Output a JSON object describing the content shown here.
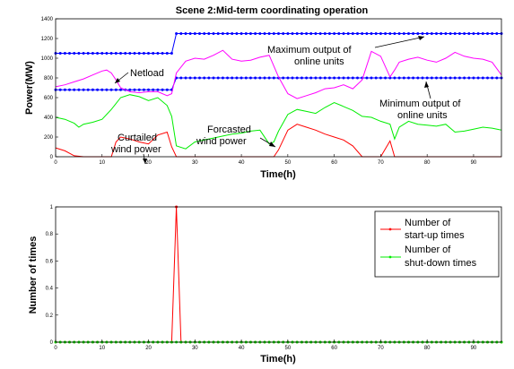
{
  "chart_data": [
    {
      "type": "line",
      "title": "Scene 2:Mid-term coordinating operation",
      "xlabel": "Time(h)",
      "ylabel": "Power(MW)",
      "xlim": [
        0,
        96
      ],
      "ylim": [
        0,
        1400
      ],
      "xticks": [
        0,
        10,
        20,
        30,
        40,
        50,
        60,
        70,
        80,
        90
      ],
      "yticks": [
        0,
        200,
        400,
        600,
        800,
        1000,
        1200,
        1400
      ],
      "grid": false,
      "series": [
        {
          "key": "max_output",
          "color": "#0000ff",
          "marker": "dot",
          "points": [
            [
              0,
              1050
            ],
            [
              25,
              1050
            ],
            [
              26,
              1250
            ],
            [
              96,
              1250
            ]
          ]
        },
        {
          "key": "min_output",
          "color": "#0000ff",
          "marker": "dot",
          "points": [
            [
              0,
              680
            ],
            [
              25,
              680
            ],
            [
              26,
              800
            ],
            [
              96,
              800
            ]
          ]
        },
        {
          "key": "netload",
          "color": "#ff00ff",
          "points": [
            [
              0,
              710
            ],
            [
              2,
              730
            ],
            [
              4,
              760
            ],
            [
              6,
              790
            ],
            [
              8,
              830
            ],
            [
              10,
              870
            ],
            [
              11,
              880
            ],
            [
              12,
              850
            ],
            [
              13,
              780
            ],
            [
              14,
              700
            ],
            [
              16,
              660
            ],
            [
              18,
              650
            ],
            [
              20,
              660
            ],
            [
              22,
              660
            ],
            [
              24,
              620
            ],
            [
              25,
              640
            ],
            [
              26,
              850
            ],
            [
              28,
              970
            ],
            [
              30,
              1000
            ],
            [
              32,
              990
            ],
            [
              34,
              1030
            ],
            [
              36,
              1080
            ],
            [
              38,
              990
            ],
            [
              40,
              970
            ],
            [
              42,
              980
            ],
            [
              44,
              1010
            ],
            [
              46,
              1030
            ],
            [
              48,
              810
            ],
            [
              50,
              640
            ],
            [
              52,
              590
            ],
            [
              54,
              620
            ],
            [
              56,
              650
            ],
            [
              58,
              690
            ],
            [
              60,
              700
            ],
            [
              62,
              730
            ],
            [
              64,
              690
            ],
            [
              66,
              780
            ],
            [
              68,
              1070
            ],
            [
              70,
              1020
            ],
            [
              72,
              810
            ],
            [
              73,
              880
            ],
            [
              74,
              960
            ],
            [
              76,
              990
            ],
            [
              78,
              1010
            ],
            [
              80,
              980
            ],
            [
              82,
              960
            ],
            [
              84,
              1000
            ],
            [
              86,
              1060
            ],
            [
              88,
              1020
            ],
            [
              90,
              1000
            ],
            [
              92,
              990
            ],
            [
              94,
              960
            ],
            [
              96,
              830
            ]
          ]
        },
        {
          "key": "forecasted_wind",
          "color": "#00ee00",
          "points": [
            [
              0,
              400
            ],
            [
              2,
              380
            ],
            [
              4,
              340
            ],
            [
              5,
              300
            ],
            [
              6,
              330
            ],
            [
              8,
              350
            ],
            [
              10,
              380
            ],
            [
              12,
              480
            ],
            [
              14,
              600
            ],
            [
              16,
              630
            ],
            [
              18,
              610
            ],
            [
              20,
              570
            ],
            [
              22,
              600
            ],
            [
              24,
              520
            ],
            [
              25,
              410
            ],
            [
              26,
              110
            ],
            [
              28,
              80
            ],
            [
              30,
              150
            ],
            [
              32,
              170
            ],
            [
              34,
              190
            ],
            [
              36,
              210
            ],
            [
              38,
              230
            ],
            [
              40,
              240
            ],
            [
              42,
              260
            ],
            [
              44,
              270
            ],
            [
              46,
              130
            ],
            [
              47,
              150
            ],
            [
              48,
              260
            ],
            [
              50,
              430
            ],
            [
              52,
              480
            ],
            [
              54,
              460
            ],
            [
              56,
              440
            ],
            [
              58,
              500
            ],
            [
              60,
              550
            ],
            [
              62,
              510
            ],
            [
              64,
              470
            ],
            [
              66,
              410
            ],
            [
              68,
              400
            ],
            [
              70,
              360
            ],
            [
              72,
              330
            ],
            [
              73,
              180
            ],
            [
              74,
              300
            ],
            [
              76,
              360
            ],
            [
              78,
              330
            ],
            [
              80,
              320
            ],
            [
              82,
              310
            ],
            [
              84,
              330
            ],
            [
              86,
              250
            ],
            [
              88,
              260
            ],
            [
              90,
              280
            ],
            [
              92,
              300
            ],
            [
              94,
              290
            ],
            [
              96,
              270
            ]
          ]
        },
        {
          "key": "curtailed_wind",
          "color": "#ff0000",
          "points": [
            [
              0,
              90
            ],
            [
              2,
              60
            ],
            [
              4,
              10
            ],
            [
              6,
              0
            ],
            [
              8,
              0
            ],
            [
              10,
              0
            ],
            [
              12,
              0
            ],
            [
              13,
              150
            ],
            [
              14,
              200
            ],
            [
              16,
              180
            ],
            [
              18,
              150
            ],
            [
              20,
              130
            ],
            [
              22,
              220
            ],
            [
              24,
              250
            ],
            [
              25,
              100
            ],
            [
              26,
              0
            ],
            [
              45,
              0
            ],
            [
              47,
              0
            ],
            [
              48,
              70
            ],
            [
              50,
              270
            ],
            [
              52,
              330
            ],
            [
              54,
              300
            ],
            [
              56,
              270
            ],
            [
              58,
              230
            ],
            [
              60,
              200
            ],
            [
              62,
              170
            ],
            [
              64,
              110
            ],
            [
              66,
              0
            ],
            [
              68,
              0
            ],
            [
              70,
              0
            ],
            [
              72,
              160
            ],
            [
              73,
              0
            ],
            [
              74,
              0
            ],
            [
              96,
              0
            ]
          ]
        }
      ],
      "annotations": [
        {
          "lines": [
            "Maximum output of",
            "online units"
          ]
        },
        {
          "lines": [
            "Netload"
          ]
        },
        {
          "lines": [
            "Minimum output of",
            "online units"
          ]
        },
        {
          "lines": [
            "Forcasted",
            "wind power"
          ]
        },
        {
          "lines": [
            "Curtailed",
            "wind power"
          ]
        }
      ]
    },
    {
      "type": "line",
      "title": "",
      "xlabel": "Time(h)",
      "ylabel": "Number of times",
      "xlim": [
        0,
        96
      ],
      "ylim": [
        0,
        1
      ],
      "xticks": [
        0,
        10,
        20,
        30,
        40,
        50,
        60,
        70,
        80,
        90
      ],
      "yticks": [
        0,
        0.2,
        0.4,
        0.6,
        0.8,
        1
      ],
      "grid": false,
      "legend": "top-right",
      "series": [
        {
          "name": "Number of start-up times",
          "legend_lines": [
            "Number of",
            "start-up times"
          ],
          "color": "#ff0000",
          "marker": "dot",
          "points": [
            [
              0,
              0
            ],
            [
              25,
              0
            ],
            [
              26,
              1
            ],
            [
              27,
              0
            ],
            [
              96,
              0
            ]
          ]
        },
        {
          "name": "Number of shut-down times",
          "legend_lines": [
            "Number of",
            "shut-down times"
          ],
          "color": "#00ee00",
          "marker": "dot",
          "points": [
            [
              0,
              0
            ],
            [
              96,
              0
            ]
          ]
        }
      ]
    }
  ]
}
